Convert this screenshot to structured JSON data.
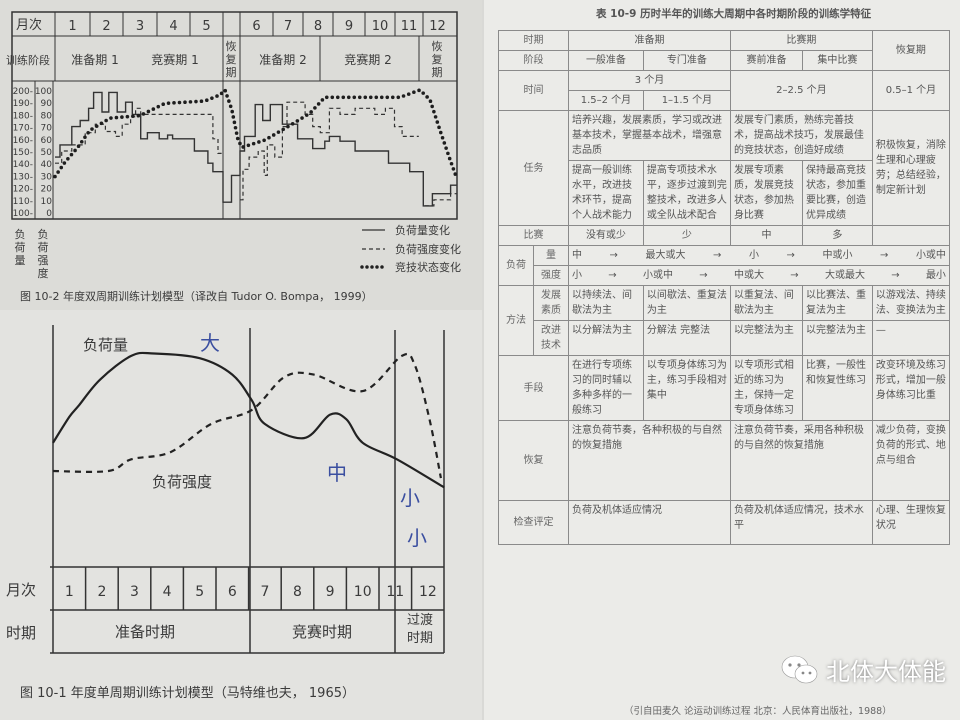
{
  "chart_data": [
    {
      "type": "line",
      "title": "图 10-2  年度双周期训练计划模型（译改自 Tudor O. Bompa， 1999）",
      "month_label": "月次",
      "months": [
        "1",
        "2",
        "3",
        "4",
        "5",
        "",
        "6",
        "7",
        "8",
        "9",
        "10",
        "11",
        "12"
      ],
      "phase_label": "训练阶段",
      "phases": [
        "准备期 1",
        "竞赛期 1",
        "恢复期",
        "准备期 2",
        "竞赛期 2",
        "恢复期"
      ],
      "y_load_ticks": [
        "200",
        "190",
        "180",
        "170",
        "160",
        "150",
        "140",
        "130",
        "120",
        "110",
        "100"
      ],
      "y_intensity_ticks": [
        "100",
        "90",
        "80",
        "70",
        "60",
        "50",
        "40",
        "30",
        "20",
        "10",
        "0"
      ],
      "ylabel_load": "负荷量",
      "ylabel_intensity": "负荷强度",
      "ylim_load": [
        100,
        200
      ],
      "ylim_intensity": [
        0,
        100
      ],
      "legend": [
        "负荷量变化",
        "负荷强度变化",
        "竞技状态变化"
      ],
      "legend_position": "bottom-right",
      "series": [
        {
          "name": "负荷量变化",
          "axis": "load",
          "style": "solid",
          "step": true,
          "segments": [
            [
              [
                0,
                145
              ],
              [
                0.15,
                155
              ],
              [
                0.5,
                170
              ],
              [
                0.75,
                175
              ],
              [
                1.0,
                185
              ],
              [
                1.15,
                198
              ],
              [
                1.4,
                182
              ],
              [
                1.6,
                198
              ],
              [
                1.85,
                182
              ],
              [
                2.1,
                190
              ],
              [
                2.3,
                180
              ],
              [
                2.55,
                160
              ],
              [
                2.75,
                165
              ],
              [
                3.1,
                160
              ],
              [
                3.35,
                163
              ],
              [
                3.5,
                160
              ],
              [
                4.15,
                150
              ],
              [
                4.55,
                140
              ],
              [
                4.7,
                133
              ],
              [
                5.0,
                133
              ],
              [
                5.0,
                108
              ],
              [
                5.25,
                130
              ],
              [
                5.5,
                150
              ],
              [
                5.65,
                162
              ],
              [
                6.0,
                188
              ],
              [
                6.25,
                175
              ],
              [
                6.5,
                188
              ],
              [
                6.9,
                172
              ],
              [
                7.4,
                160
              ],
              [
                7.9,
                152
              ],
              [
                8.3,
                158
              ],
              [
                8.45,
                162
              ],
              [
                8.8,
                158
              ],
              [
                9.3,
                150
              ],
              [
                10.4,
                140
              ],
              [
                11.1,
                133
              ],
              [
                11.55,
                105
              ],
              [
                11.85,
                115
              ],
              [
                12.45,
                122
              ],
              [
                12.65,
                122
              ]
            ]
          ]
        },
        {
          "name": "负荷强度变化",
          "axis": "intensity",
          "style": "dashed",
          "step": true,
          "segments": [
            [
              [
                0,
                40
              ],
              [
                0.2,
                50
              ],
              [
                0.5,
                55
              ],
              [
                0.9,
                65
              ],
              [
                1.2,
                72
              ],
              [
                1.5,
                66
              ],
              [
                1.8,
                62
              ],
              [
                2.0,
                72
              ],
              [
                2.25,
                78
              ],
              [
                2.4,
                85
              ],
              [
                2.55,
                80
              ],
              [
                4.7,
                60
              ],
              [
                4.85,
                48
              ],
              [
                5.0,
                48
              ]
            ],
            [
              [
                5.5,
                10
              ],
              [
                5.6,
                35
              ],
              [
                5.8,
                45
              ],
              [
                6.1,
                50
              ],
              [
                6.3,
                30
              ],
              [
                6.4,
                55
              ],
              [
                6.65,
                45
              ],
              [
                6.9,
                70
              ],
              [
                7.05,
                90
              ],
              [
                7.65,
                80
              ],
              [
                7.9,
                70
              ],
              [
                8.15,
                65
              ],
              [
                8.45,
                85
              ],
              [
                8.8,
                80
              ],
              [
                9.3,
                85
              ],
              [
                9.95,
                80
              ],
              [
                10.3,
                85
              ],
              [
                10.6,
                70
              ],
              [
                10.85,
                62
              ],
              [
                11.4,
                62
              ]
            ],
            [
              [
                11.6,
                5
              ],
              [
                11.9,
                10
              ],
              [
                12.45,
                15
              ],
              [
                12.65,
                15
              ]
            ]
          ]
        },
        {
          "name": "竞技状态变化",
          "axis": "intensity",
          "style": "dotted",
          "step": false,
          "segments": [
            [
              [
                0,
                29
              ],
              [
                0.3,
                41
              ],
              [
                0.68,
                53
              ],
              [
                1.04,
                67
              ],
              [
                1.64,
                77
              ],
              [
                2.53,
                79
              ],
              [
                3.27,
                89
              ],
              [
                4.46,
                91
              ],
              [
                4.91,
                96
              ],
              [
                5.06,
                100
              ],
              [
                5.26,
                84
              ],
              [
                5.44,
                59
              ],
              [
                5.57,
                53
              ],
              [
                6.33,
                59
              ],
              [
                7.15,
                71
              ],
              [
                7.81,
                81
              ],
              [
                8.3,
                94
              ],
              [
                8.97,
                94
              ],
              [
                10.78,
                94
              ],
              [
                11.44,
                100
              ],
              [
                11.77,
                92
              ],
              [
                12.1,
                67
              ],
              [
                12.43,
                43
              ],
              [
                12.65,
                28
              ]
            ]
          ]
        }
      ]
    },
    {
      "type": "line",
      "title": "图 10-1  年度单周期训练计划模型（马特维也夫， 1965）",
      "month_label": "月次",
      "months": [
        "1",
        "2",
        "3",
        "4",
        "5",
        "6",
        "7",
        "8",
        "9",
        "10",
        "11",
        "12"
      ],
      "period_label": "时期",
      "periods": [
        "准备时期",
        "竞赛时期",
        "过渡时期"
      ],
      "series": [
        {
          "name": "负荷量",
          "style": "solid",
          "points": [
            [
              0,
              52
            ],
            [
              0.5,
              63
            ],
            [
              0.8,
              68
            ],
            [
              1.45,
              79
            ],
            [
              2.4,
              89
            ],
            [
              3.1,
              90
            ],
            [
              4.5,
              88
            ],
            [
              5.5,
              81
            ],
            [
              6.1,
              70
            ],
            [
              6.5,
              60
            ],
            [
              7.7,
              54
            ],
            [
              8.5,
              64
            ],
            [
              9.0,
              62
            ],
            [
              9.5,
              52
            ],
            [
              10.55,
              45
            ],
            [
              12,
              33
            ]
          ]
        },
        {
          "name": "负荷强度",
          "style": "dashed",
          "points": [
            [
              0,
              40
            ],
            [
              1.7,
              40
            ],
            [
              2.4,
              45
            ],
            [
              3.6,
              48
            ],
            [
              4.85,
              60
            ],
            [
              6.1,
              66
            ],
            [
              7.1,
              80
            ],
            [
              8.0,
              81
            ],
            [
              9.5,
              74
            ],
            [
              10.7,
              89
            ],
            [
              11.1,
              85
            ],
            [
              11.55,
              62
            ],
            [
              11.9,
              37
            ]
          ]
        }
      ],
      "handwritten": [
        "大",
        "中",
        "小",
        "小"
      ]
    }
  ],
  "table": {
    "title": "表 10-9   历时半年的训练大周期中各时期阶段的训练学特征",
    "labels": {
      "period": "时期",
      "stage": "阶段",
      "time": "时间",
      "task": "任务",
      "competition": "比赛",
      "load": "负荷",
      "volume": "量",
      "intensity": "强度",
      "method": "方法",
      "develop": "发展素质",
      "improve": "改进技术",
      "means": "手段",
      "recovery": "恢复",
      "evaluation": "检查评定"
    },
    "periods": [
      "准备期",
      "比赛期",
      "恢复期"
    ],
    "stages": [
      "一般准备",
      "专门准备",
      "赛前准备",
      "集中比赛"
    ],
    "time": {
      "prep_total": "3 个月",
      "general": "1.5–2 个月",
      "special": "1–1.5 个月",
      "competition": "2–2.5 个月",
      "recovery": "0.5–1 个月"
    },
    "task": {
      "prep_common": "培养兴趣，发展素质，学习或改进基本技术，掌握基本战术，增强意志品质",
      "comp_common": "发展专门素质，熟练完善技术，提高战术技巧，发展最佳的竞技状态，创造好成绩",
      "general": "提高一般训练水平，改进技术环节，提高个人战术能力",
      "special": "提高专项技术水平，逐步过渡到完整技术，改进多人或全队战术配合",
      "pre_comp": "发展专项素质，发展竞技状态，参加热身比赛",
      "main_comp": "保持最高竞技状态，参加重要比赛，创造优异成绩",
      "recovery": "积极恢复，消除生理和心理疲劳；总结经验，制定新计划"
    },
    "competition": [
      "没有或少",
      "少",
      "中",
      "多",
      ""
    ],
    "volume": [
      "中",
      "最大或大",
      "小",
      "中或小",
      "小或中"
    ],
    "intensity": [
      "小",
      "小或中",
      "中或大",
      "大或最大",
      "最小"
    ],
    "develop": [
      "以持续法、间歇法为主",
      "以间歇法、重复法为主",
      "以重复法、间歇法为主",
      "以比赛法、重复法为主",
      "以游戏法、持续法、变换法为主"
    ],
    "improve": [
      "以分解法为主",
      "分解法 完整法",
      "以完整法为主",
      "以完整法为主",
      "—"
    ],
    "means": [
      "在进行专项练习的同时辅以多种多样的一般练习",
      "以专项身体练习为主，练习手段相对集中",
      "以专项形式相近的练习为主，保持一定专项身体练习",
      "比赛，一般性和恢复性练习",
      "改变环境及练习形式，增加一般身体练习比重"
    ],
    "recovery": [
      "注意负荷节奏，各种积极的与自然的恢复措施",
      "注意负荷节奏，采用各种积极的与自然的恢复措施",
      "减少负荷，变换负荷的形式、地点与组合"
    ],
    "evaluation": [
      "负荷及机体适应情况",
      "负荷及机体适应情况，技术水平",
      "心理、生理恢复状况"
    ],
    "source": "（引自田麦久  论运动训练过程  北京：人民体育出版社，1988）"
  },
  "watermark": "北体大体能",
  "colors": {
    "ink": "#333333",
    "handwriting": "#3b4fa0",
    "paper_left": "#dcdcd8",
    "paper_right": "#ebebe8"
  }
}
